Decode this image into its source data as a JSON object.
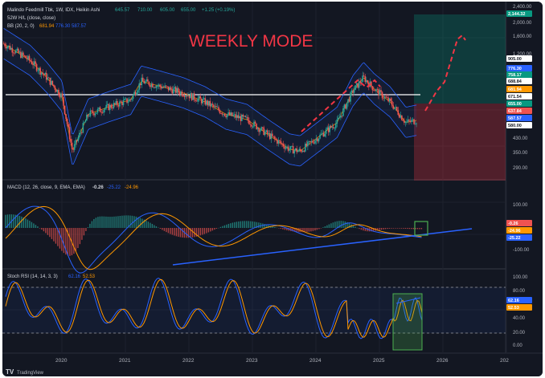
{
  "header": {
    "symbol": "Malindo Feedmill Tbk, 1W, IDX, Heikin Ashi",
    "ohlc": [
      "645.57",
      "710.00",
      "605.00",
      "655.00",
      "+1.25 (+0.19%)"
    ],
    "ind1_label": "52W H/L (close, close)",
    "ind2_label": "BB (20, 2, 0)",
    "ind2_values": [
      "681.94",
      "776.30",
      "587.57"
    ],
    "overlay_text": "WEEKLY MODE"
  },
  "colors": {
    "up": "#26a69a",
    "down": "#ef5350",
    "bg": "#131722",
    "grid": "#2a2e39",
    "macd": "#2962ff",
    "signal": "#ff9800",
    "rsi_k": "#2962ff",
    "rsi_d": "#ff9800",
    "overlay": "#f23645"
  },
  "chart_data": [
    {
      "type": "candlestick",
      "title": "Malindo Feedmill Tbk, 1W, IDX, Heikin Ashi",
      "y_scale": "log",
      "y_ticks": [
        "2,400.00",
        "2,000.00",
        "1,600.00",
        "1,200.00",
        "800.00",
        "430.00",
        "350.00",
        "290.00"
      ],
      "price_tags": [
        {
          "label": "2,144.32",
          "color": "#089981"
        },
        {
          "label": "905.00",
          "color": "#ffffff"
        },
        {
          "label": "776.30",
          "color": "#2962ff"
        },
        {
          "label": "758.17",
          "color": "#089981"
        },
        {
          "label": "688.84",
          "color": "#ffffff"
        },
        {
          "label": "681.94",
          "color": "#ff9800"
        },
        {
          "label": "671.54",
          "color": "#ffffff"
        },
        {
          "label": "655.00",
          "color": "#089981"
        },
        {
          "label": "637.84",
          "color": "#ef5350"
        },
        {
          "label": "587.57",
          "color": "#2962ff"
        },
        {
          "label": "580.00",
          "color": "#ffffff"
        }
      ],
      "series_points": {
        "x": [
          "2019-02",
          "2019-07",
          "2019-10",
          "2020-01",
          "2020-03",
          "2020-06",
          "2020-10",
          "2021-02",
          "2021-04",
          "2021-08",
          "2021-12",
          "2022-04",
          "2022-08",
          "2022-12",
          "2023-04",
          "2023-08",
          "2023-10",
          "2024-02",
          "2024-05",
          "2024-08",
          "2024-10",
          "2024-12",
          "2025-03",
          "2025-06",
          "2025-08"
        ],
        "close": [
          1500,
          1250,
          1050,
          850,
          470,
          700,
          760,
          820,
          1000,
          940,
          880,
          800,
          700,
          660,
          560,
          480,
          470,
          560,
          640,
          900,
          1040,
          920,
          800,
          640,
          655
        ]
      },
      "annotations": [
        "horizontal resistance line near 905.00",
        "dashed projection toward 2,144.32",
        "long position box (green above, red below)"
      ]
    },
    {
      "type": "line",
      "title": "MACD (12, 26, close, 9, EMA, EMA)",
      "legend_values": [
        "-0.26",
        "-25.22",
        "-24.96"
      ],
      "y_ticks": [
        "100.00",
        "-100.00"
      ],
      "value_tags": [
        {
          "label": "-0.26",
          "color": "#ef5350"
        },
        {
          "label": "-24.96",
          "color": "#ff9800"
        },
        {
          "label": "-25.22",
          "color": "#2962ff"
        }
      ]
    },
    {
      "type": "line",
      "title": "Stoch RSI (14, 14, 3, 3)",
      "legend_values": [
        "62.16",
        "52.53"
      ],
      "y_ticks": [
        "100.00",
        "80.00",
        "40.00",
        "20.00",
        "0.00"
      ],
      "value_tags": [
        {
          "label": "62.16",
          "color": "#2962ff"
        },
        {
          "label": "52.53",
          "color": "#ff9800"
        }
      ],
      "bands": [
        20,
        80
      ]
    }
  ],
  "x_axis": [
    "2020",
    "2021",
    "2022",
    "2023",
    "2024",
    "2025",
    "2026",
    "202"
  ],
  "footer": {
    "logo_text": "TradingView"
  }
}
